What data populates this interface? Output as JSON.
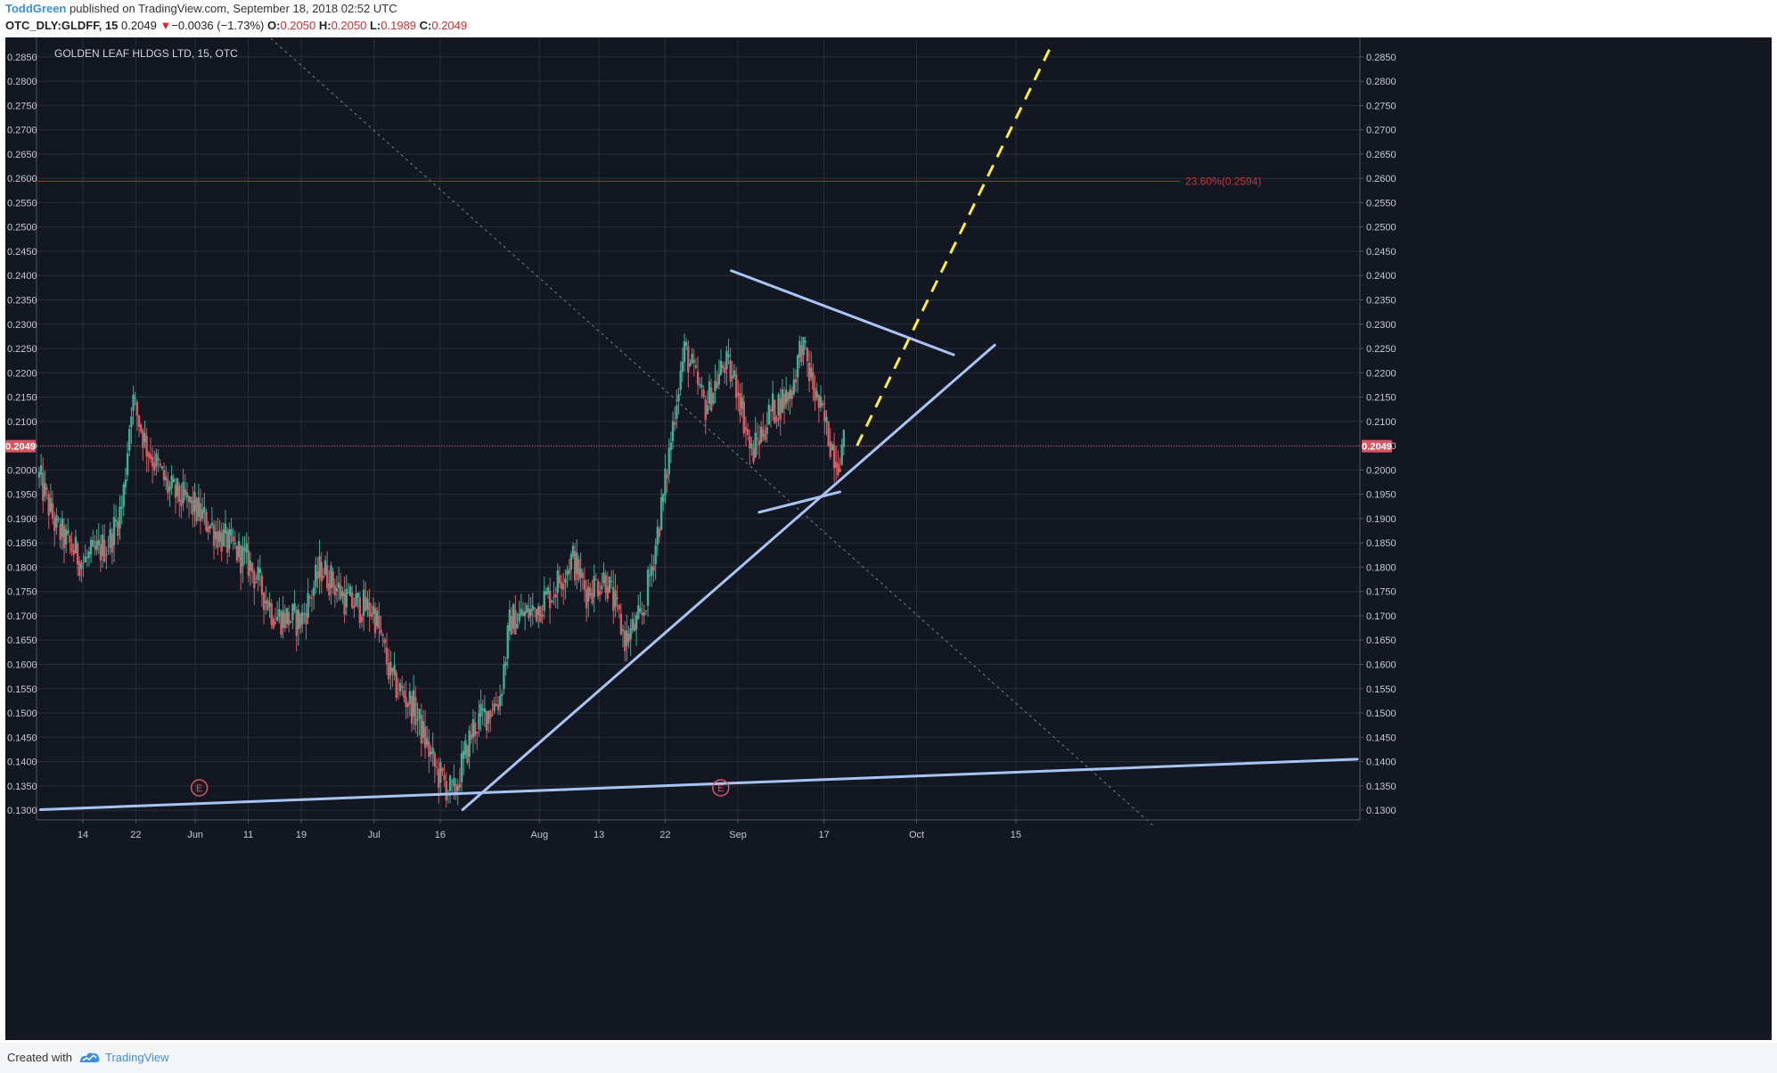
{
  "header": {
    "author": "ToddGreen",
    "published": "published on TradingView.com, September 18, 2018 02:52 UTC",
    "symbol": "OTC_DLY:GLDFF, 15",
    "last": "0.2049",
    "change_arrow": "▼",
    "change": "−0.0036 (−1.73%)",
    "open_label": "O:",
    "open": "0.2050",
    "high_label": "H:",
    "high": "0.2050",
    "low_label": "L:",
    "low": "0.1989",
    "close_label": "C:",
    "close": "0.2049"
  },
  "chart_title": "GOLDEN LEAF HLDGS LTD, 15, OTC",
  "price_label": "0.2049",
  "fib_label": "23.60%(0.2594)",
  "earnings_marker": "E",
  "footer": {
    "created_with": "Created with",
    "brand": "TradingView"
  },
  "colors": {
    "background": "#131722",
    "grid": "#2a2e39",
    "up": "#3fae93",
    "down": "#d75a63",
    "trendline": "#a8c4f5",
    "projection": "#ffeb3b",
    "fib": "#b0302f",
    "price_line": "#d95562",
    "fib_text": "#c8353a",
    "axis_text": "#c5c8ce"
  },
  "chart_data": {
    "type": "candlestick",
    "symbol": "GLDFF",
    "interval": "15",
    "ylim": [
      0.128,
      0.289
    ],
    "yticks": [
      "0.1300",
      "0.1350",
      "0.1400",
      "0.1450",
      "0.1500",
      "0.1550",
      "0.1600",
      "0.1650",
      "0.1700",
      "0.1750",
      "0.1800",
      "0.1850",
      "0.1900",
      "0.1950",
      "0.2000",
      "0.2050",
      "0.2100",
      "0.2150",
      "0.2200",
      "0.2250",
      "0.2300",
      "0.2350",
      "0.2400",
      "0.2450",
      "0.2500",
      "0.2550",
      "0.2600",
      "0.2650",
      "0.2700",
      "0.2750",
      "0.2800",
      "0.2850"
    ],
    "xlim": [
      0,
      100
    ],
    "xticks": [
      {
        "label": "14",
        "x": 3.5
      },
      {
        "label": "22",
        "x": 7.5
      },
      {
        "label": "Jun",
        "x": 12
      },
      {
        "label": "11",
        "x": 16
      },
      {
        "label": "19",
        "x": 20
      },
      {
        "label": "Jul",
        "x": 25.5
      },
      {
        "label": "16",
        "x": 30.5
      },
      {
        "label": "Aug",
        "x": 38
      },
      {
        "label": "13",
        "x": 42.5
      },
      {
        "label": "22",
        "x": 47.5
      },
      {
        "label": "Sep",
        "x": 53
      },
      {
        "label": "17",
        "x": 59.5
      },
      {
        "label": "Oct",
        "x": 66.5
      },
      {
        "label": "15",
        "x": 74
      }
    ],
    "anchors": [
      [
        0,
        0.2
      ],
      [
        1.5,
        0.188
      ],
      [
        3.5,
        0.181
      ],
      [
        5.5,
        0.185
      ],
      [
        6.5,
        0.193
      ],
      [
        7.2,
        0.215
      ],
      [
        8.3,
        0.205
      ],
      [
        10,
        0.196
      ],
      [
        12,
        0.192
      ],
      [
        14,
        0.186
      ],
      [
        16,
        0.181
      ],
      [
        18,
        0.17
      ],
      [
        20,
        0.169
      ],
      [
        21.5,
        0.18
      ],
      [
        23.5,
        0.173
      ],
      [
        25.5,
        0.171
      ],
      [
        26.8,
        0.157
      ],
      [
        28.5,
        0.151
      ],
      [
        30.2,
        0.138
      ],
      [
        31.5,
        0.133
      ],
      [
        33,
        0.147
      ],
      [
        35,
        0.153
      ],
      [
        35.8,
        0.169
      ],
      [
        37.5,
        0.171
      ],
      [
        39,
        0.175
      ],
      [
        40.5,
        0.182
      ],
      [
        41.5,
        0.175
      ],
      [
        43,
        0.178
      ],
      [
        44.5,
        0.165
      ],
      [
        45.8,
        0.17
      ],
      [
        46.6,
        0.182
      ],
      [
        47.4,
        0.195
      ],
      [
        48.4,
        0.216
      ],
      [
        49,
        0.225
      ],
      [
        50.5,
        0.213
      ],
      [
        52,
        0.222
      ],
      [
        53,
        0.217
      ],
      [
        54,
        0.203
      ],
      [
        55.5,
        0.212
      ],
      [
        57,
        0.216
      ],
      [
        57.8,
        0.226
      ],
      [
        59,
        0.214
      ],
      [
        60.5,
        0.202
      ],
      [
        61,
        0.2049
      ]
    ],
    "drawings": {
      "fib_level": 0.2594,
      "current_price": 0.2049,
      "trend_lines": [
        {
          "from": [
            0.3,
            0.1301
          ],
          "to": [
            99.8,
            0.1405
          ]
        },
        {
          "from": [
            32.2,
            0.1301
          ],
          "to": [
            72.4,
            0.2257
          ]
        },
        {
          "from": [
            52.5,
            0.241
          ],
          "to": [
            69.3,
            0.2237
          ]
        },
        {
          "from": [
            54.6,
            0.1913
          ],
          "to": [
            60.7,
            0.1955
          ]
        }
      ],
      "projection": {
        "from": [
          62,
          0.205
        ],
        "to": [
          76.8,
          0.288
        ]
      },
      "dotted_line": {
        "from": [
          17,
          0.2905
        ],
        "to": [
          84.5,
          0.1265
        ]
      },
      "earnings_x": [
        12.3,
        51.7
      ]
    }
  }
}
